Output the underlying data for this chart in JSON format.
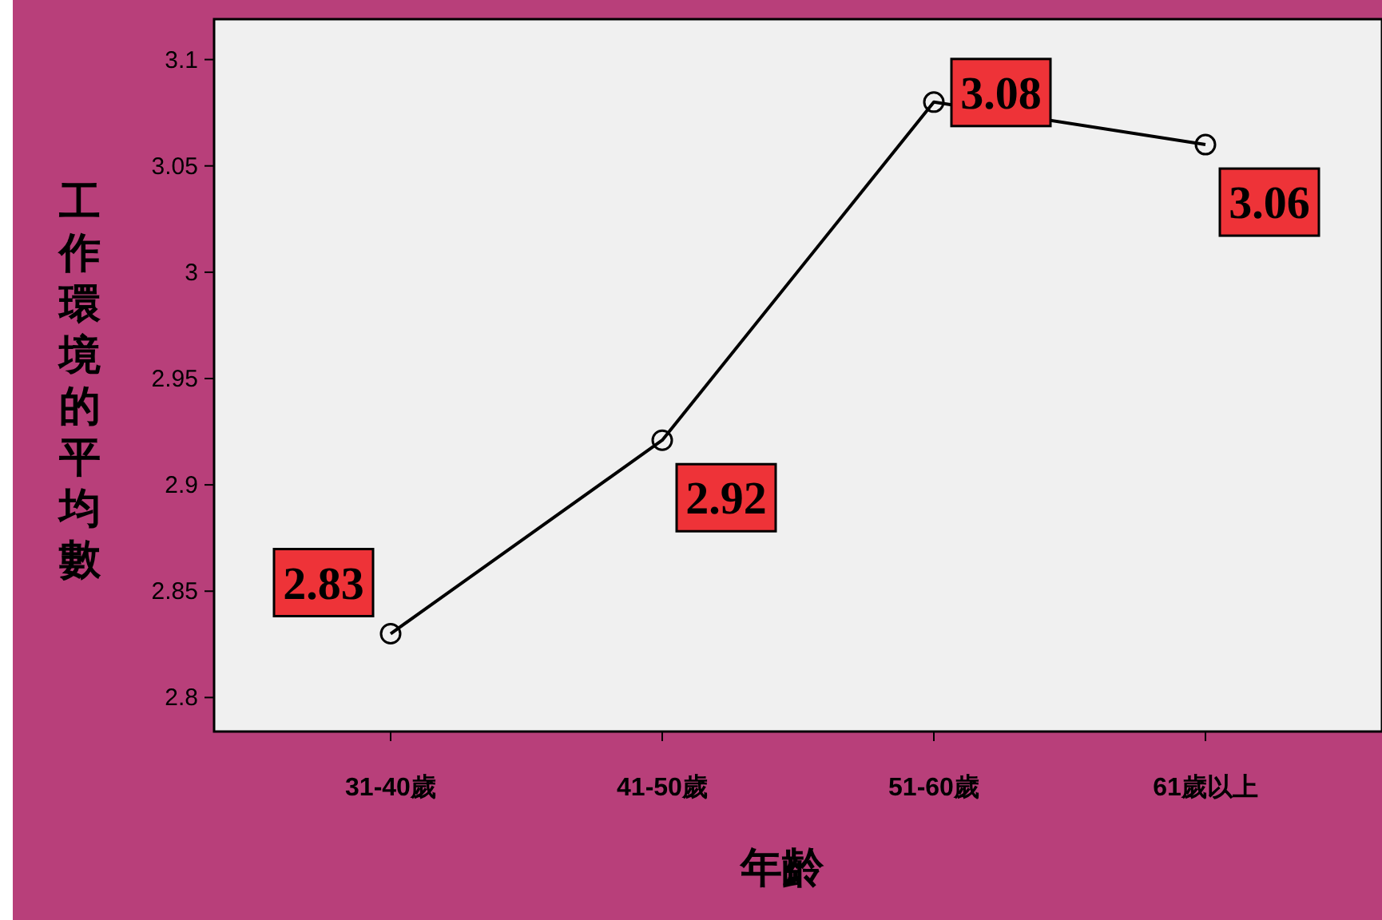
{
  "chart_data": {
    "type": "line",
    "xlabel": "年齡",
    "ylabel": "工作環境的平均數",
    "categories": [
      "31-40歲",
      "41-50歲",
      "51-60歲",
      "61歲以上"
    ],
    "series": [
      {
        "color": "#000000",
        "values": [
          2.83,
          2.921,
          3.08,
          3.06
        ],
        "value_labels": [
          "2.83",
          "2.92",
          "3.08",
          "3.06"
        ]
      }
    ],
    "ylim": [
      2.784,
      3.119
    ],
    "yticks": [
      2.8,
      2.85,
      2.9,
      2.95,
      3,
      3.05,
      3.1
    ],
    "marker": "circle",
    "line_style": "solid",
    "grid": false
  }
}
